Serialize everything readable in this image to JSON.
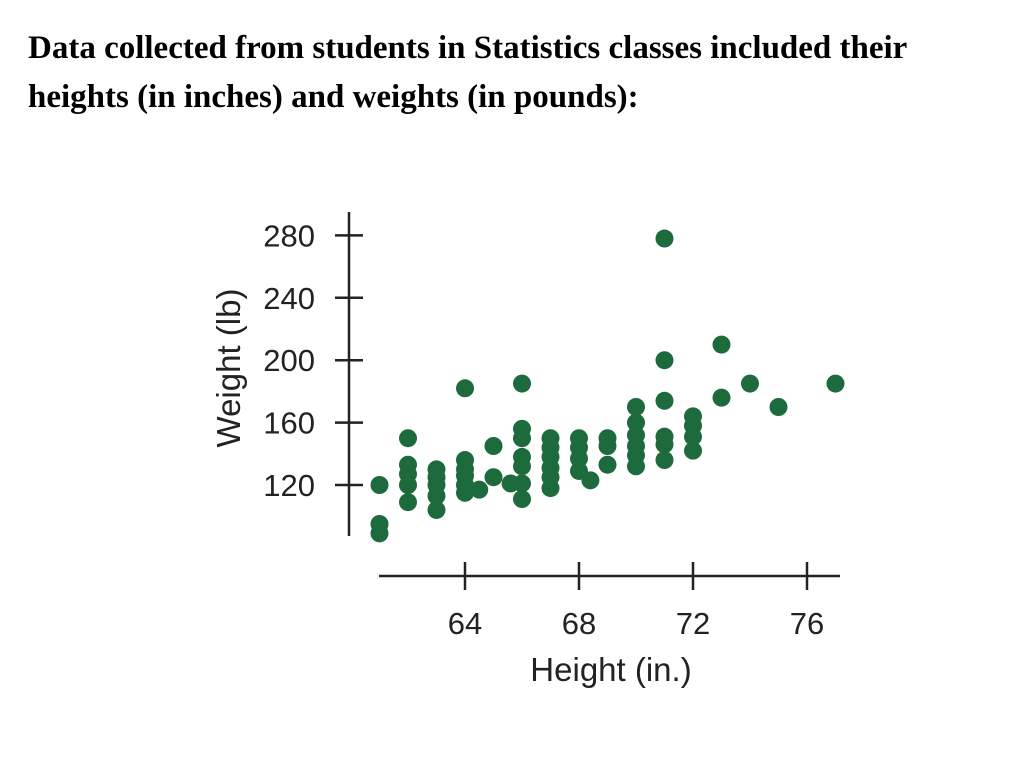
{
  "slide": {
    "text": "Data collected from students in Statistics classes included their heights (in inches) and weights (in pounds):"
  },
  "colors": {
    "point": "#1d6b3d",
    "axis": "#222222"
  },
  "chart_data": {
    "type": "scatter",
    "title": "",
    "xlabel": "Height (in.)",
    "ylabel": "Weight (lb)",
    "xlim": [
      61,
      77.2
    ],
    "ylim": [
      90,
      290
    ],
    "xticks": [
      64,
      68,
      72,
      76
    ],
    "yticks": [
      120,
      160,
      200,
      240,
      280
    ],
    "grid": false,
    "points": [
      [
        61,
        120
      ],
      [
        61,
        95
      ],
      [
        61,
        89
      ],
      [
        62,
        150
      ],
      [
        62,
        133
      ],
      [
        62,
        127
      ],
      [
        62,
        120
      ],
      [
        62,
        109
      ],
      [
        63,
        130
      ],
      [
        63,
        125
      ],
      [
        63,
        120
      ],
      [
        63,
        113
      ],
      [
        63,
        104
      ],
      [
        64,
        182
      ],
      [
        64,
        136
      ],
      [
        64,
        130
      ],
      [
        64,
        126
      ],
      [
        64,
        120
      ],
      [
        64,
        115
      ],
      [
        64.5,
        117
      ],
      [
        65,
        145
      ],
      [
        65,
        125
      ],
      [
        65.6,
        121
      ],
      [
        66,
        185
      ],
      [
        66,
        156
      ],
      [
        66,
        150
      ],
      [
        66,
        138
      ],
      [
        66,
        132
      ],
      [
        66,
        121
      ],
      [
        66,
        111
      ],
      [
        67,
        150
      ],
      [
        67,
        144
      ],
      [
        67,
        138
      ],
      [
        67,
        131
      ],
      [
        67,
        125
      ],
      [
        67,
        118
      ],
      [
        68,
        150
      ],
      [
        68,
        144
      ],
      [
        68,
        137
      ],
      [
        68,
        129
      ],
      [
        68.4,
        123
      ],
      [
        69,
        150
      ],
      [
        69,
        145
      ],
      [
        69,
        133
      ],
      [
        70,
        170
      ],
      [
        70,
        160
      ],
      [
        70,
        152
      ],
      [
        70,
        145
      ],
      [
        70,
        139
      ],
      [
        70,
        132
      ],
      [
        71,
        278
      ],
      [
        71,
        200
      ],
      [
        71,
        174
      ],
      [
        71,
        151
      ],
      [
        71,
        146
      ],
      [
        71,
        136
      ],
      [
        72,
        164
      ],
      [
        72,
        158
      ],
      [
        72,
        151
      ],
      [
        72,
        142
      ],
      [
        73,
        210
      ],
      [
        73,
        176
      ],
      [
        74,
        185
      ],
      [
        75,
        170
      ],
      [
        77,
        185
      ]
    ]
  }
}
